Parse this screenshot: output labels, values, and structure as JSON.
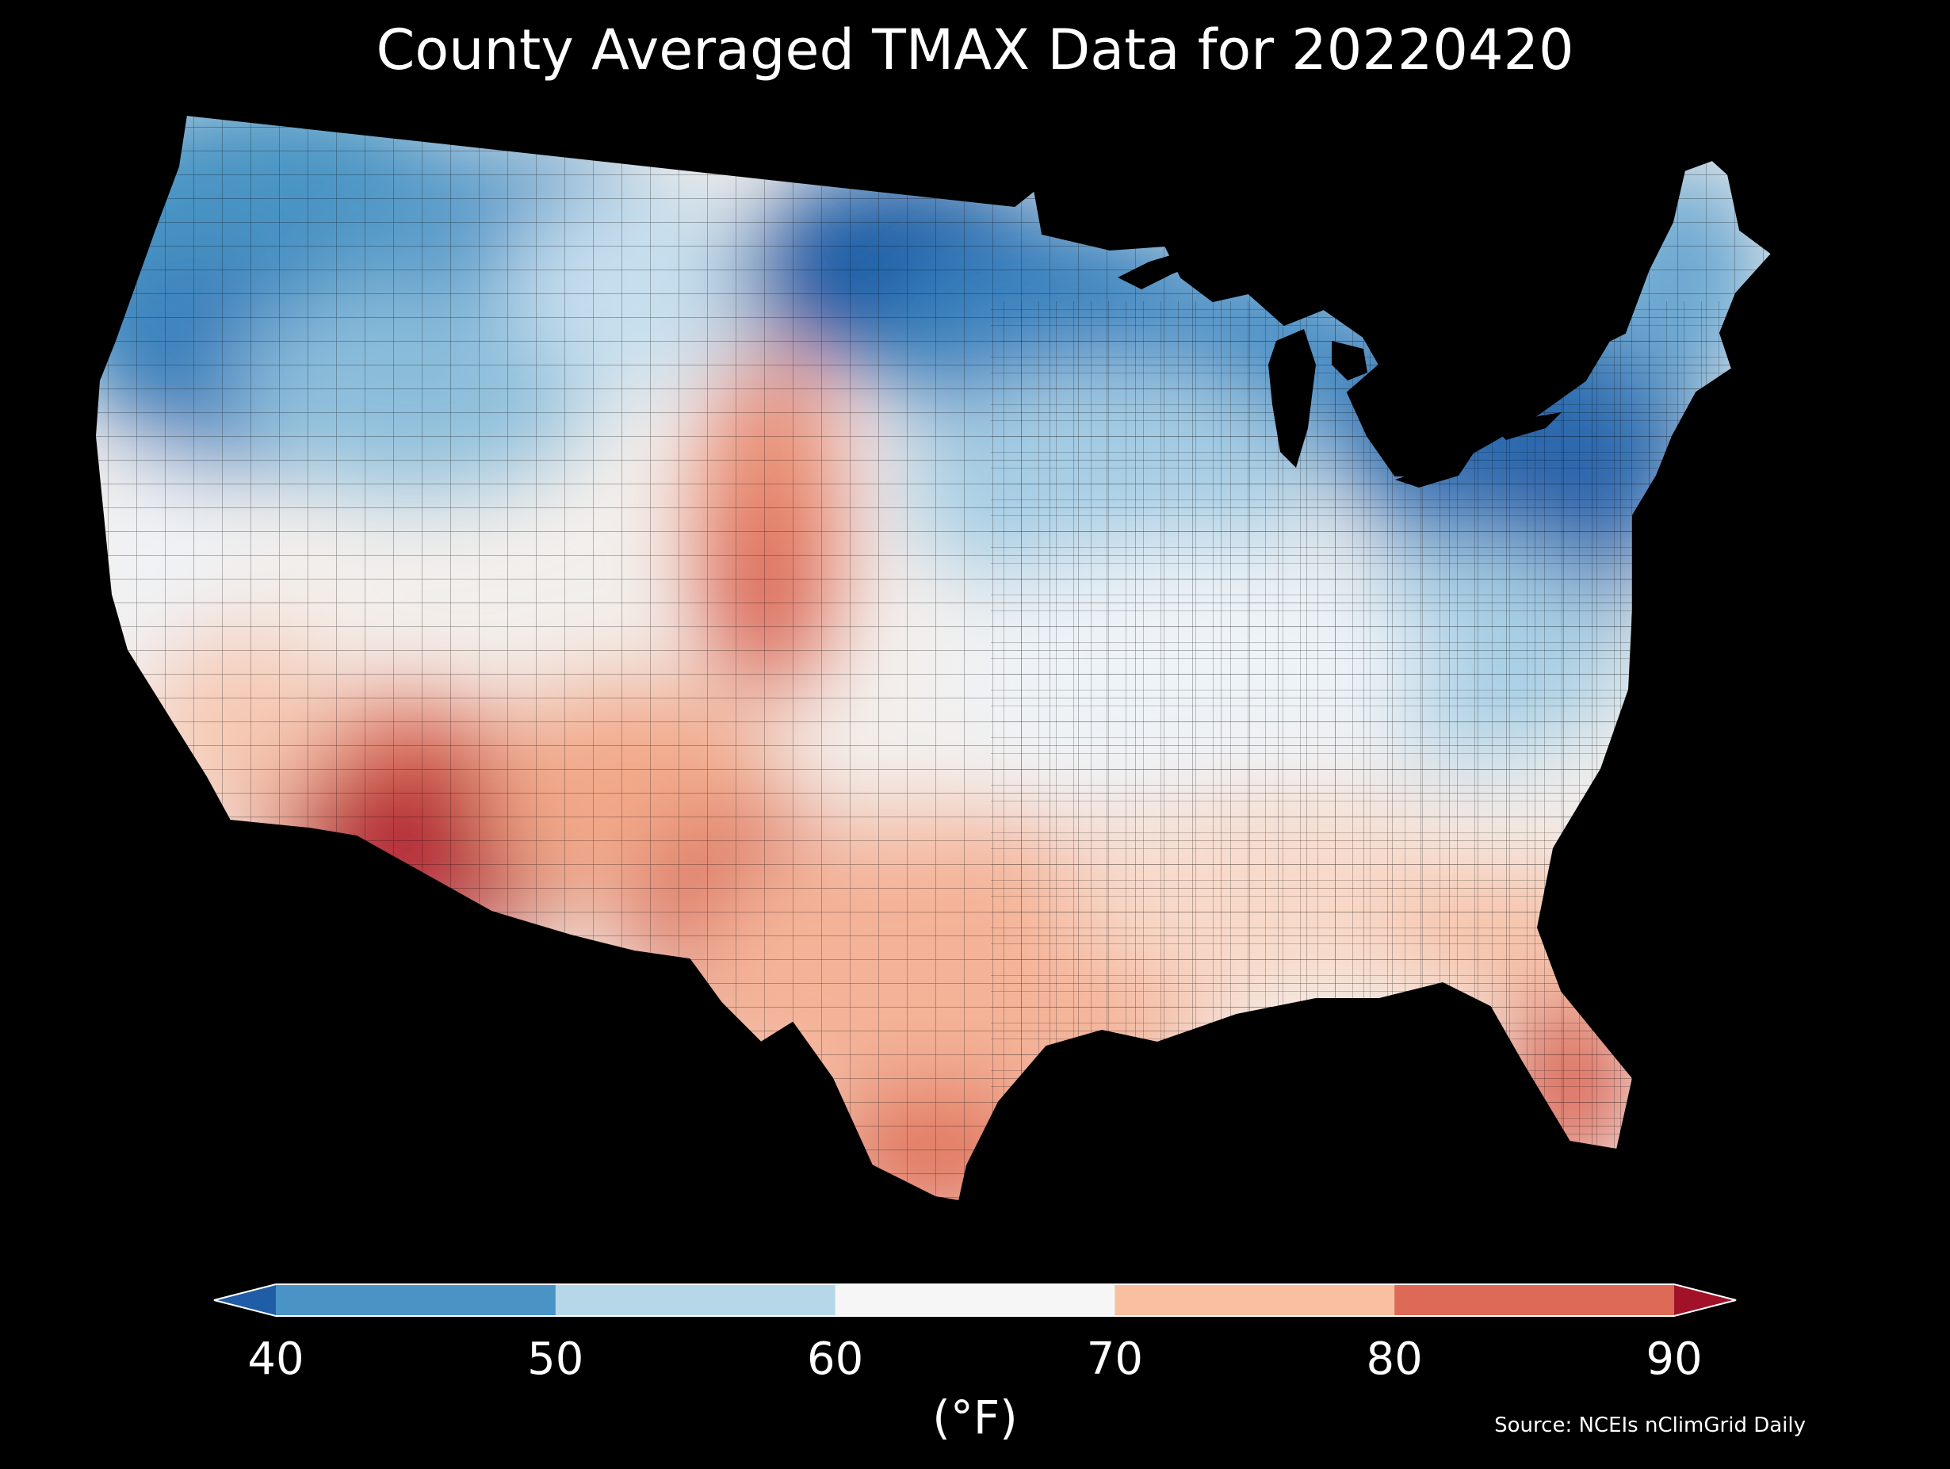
{
  "title": "County Averaged TMAX Data for 20220420",
  "colorbar": {
    "unit_label": "(°F)",
    "ticks": [
      "40",
      "50",
      "60",
      "70",
      "80",
      "90"
    ],
    "extend": "both",
    "bins": [
      {
        "range": "<40",
        "color": "#1f5da6"
      },
      {
        "range": "40-50",
        "color": "#4994c4"
      },
      {
        "range": "50-60",
        "color": "#b6d7e8"
      },
      {
        "range": "60-70",
        "color": "#f6f6f6"
      },
      {
        "range": "70-80",
        "color": "#f8bfa0"
      },
      {
        "range": "80-90",
        "color": "#dd6a56"
      },
      {
        "range": ">90",
        "color": "#a11228"
      }
    ]
  },
  "source": "Source: NCEIs nClimGrid Daily",
  "legend_colors": {
    "deep_blue": "#1f5da6",
    "blue": "#4994c4",
    "light_blue": "#b6d7e8",
    "white": "#f6f6f6",
    "peach": "#f8bfa0",
    "red": "#dd6a56",
    "dark_red": "#a11228"
  }
}
